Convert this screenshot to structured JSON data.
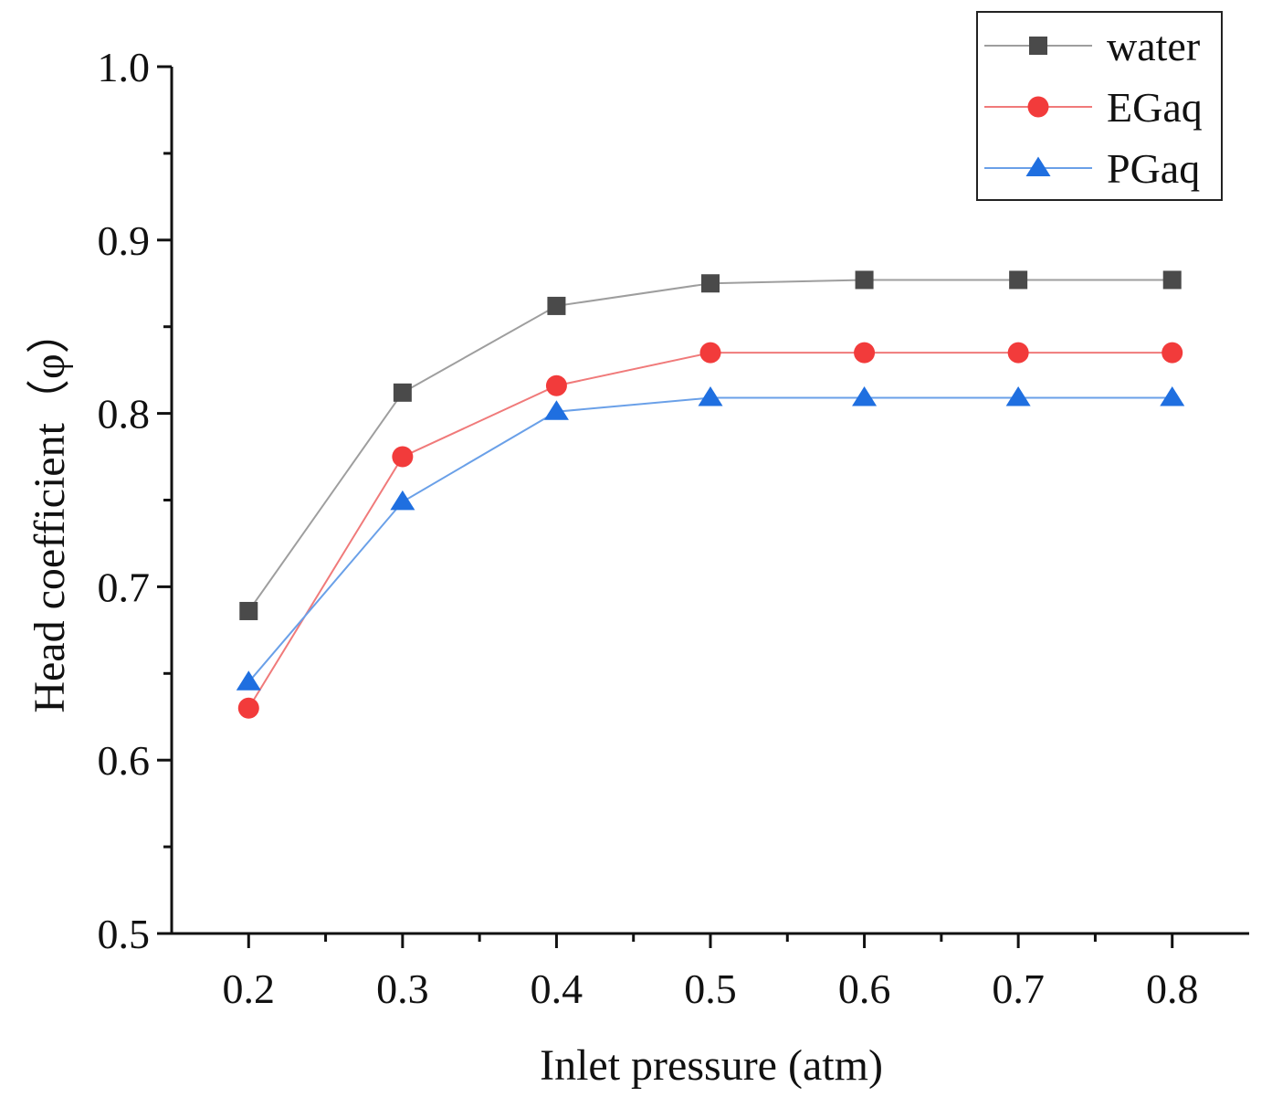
{
  "chart_data": {
    "type": "line",
    "xlabel": "Inlet pressure (atm)",
    "ylabel": "Head coefficient（φ）",
    "x": [
      0.2,
      0.3,
      0.4,
      0.5,
      0.6,
      0.7,
      0.8
    ],
    "x_tick_labels": [
      "0.2",
      "0.3",
      "0.4",
      "0.5",
      "0.6",
      "0.7",
      "0.8"
    ],
    "y_tick_labels": [
      "0.5",
      "0.6",
      "0.7",
      "0.8",
      "0.9",
      "1.0"
    ],
    "xlim": [
      0.15,
      0.85
    ],
    "ylim": [
      0.5,
      1.0
    ],
    "grid": false,
    "legend_position": "top-right",
    "series": [
      {
        "name": "water",
        "marker": "square",
        "color": "#4a4a4a",
        "line_color": "#9e9e9e",
        "values": [
          0.686,
          0.812,
          0.862,
          0.875,
          0.877,
          0.877,
          0.877
        ]
      },
      {
        "name": "EGaq",
        "marker": "circle",
        "color": "#f23b3b",
        "line_color": "#f07a7a",
        "values": [
          0.63,
          0.775,
          0.816,
          0.835,
          0.835,
          0.835,
          0.835
        ]
      },
      {
        "name": "PGaq",
        "marker": "triangle",
        "color": "#1f6fe0",
        "line_color": "#6aa0e8",
        "values": [
          0.645,
          0.749,
          0.801,
          0.809,
          0.809,
          0.809,
          0.809
        ]
      }
    ]
  }
}
